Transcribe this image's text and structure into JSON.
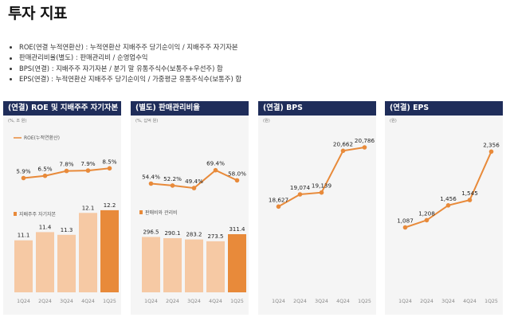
{
  "page": {
    "title": "투자 지표",
    "notes": [
      "ROE(연결 누적연환산) : 누적연환산 지배주주 당기순이익 / 지배주주 자기자본",
      "판매관리비율(별도) : 판매관리비 / 순영업수익",
      "BPS(연결) : 지배주주 자기자본 / 분기 말 유통주식수(보통주+우선주) 합",
      "EPS(연결) : 누적연환산 지배주주 당기순이익 / 가중평균 유통주식수(보통주) 합"
    ]
  },
  "colors": {
    "header_bg": "#1f2d5a",
    "line": "#e88a3a",
    "bar_light": "#f6c9a4",
    "bar_accent": "#e88a3a",
    "panel_bg": "#f5f5f5"
  },
  "chart_data": [
    {
      "type": "bar",
      "title": "(연결) ROE 및 지배주주 자기자본",
      "unit": "(%, 조 원)",
      "categories": [
        "1Q24",
        "2Q24",
        "3Q24",
        "4Q24",
        "1Q25"
      ],
      "line_series": {
        "name": "ROE(누적연환산)",
        "values": [
          5.9,
          6.5,
          7.8,
          7.9,
          8.5
        ],
        "labels": [
          "5.9%",
          "6.5%",
          "7.8%",
          "7.9%",
          "8.5%"
        ],
        "ylim": [
          0,
          12
        ]
      },
      "bar_series": {
        "name": "지배주주 자기자본",
        "values": [
          11.1,
          11.4,
          11.3,
          12.1,
          12.2
        ],
        "labels": [
          "11.1",
          "11.4",
          "11.3",
          "12.1",
          "12.2"
        ],
        "ylim": [
          9.2,
          12.4
        ]
      }
    },
    {
      "type": "bar",
      "title": "(별도) 판매관리비율",
      "unit": "(%, 십억 원)",
      "categories": [
        "1Q24",
        "2Q24",
        "3Q24",
        "4Q24",
        "1Q25"
      ],
      "line_series": {
        "name": "판매관리비율",
        "values": [
          54.4,
          52.2,
          49.4,
          69.4,
          58.0
        ],
        "labels": [
          "54.4%",
          "52.2%",
          "49.4%",
          "69.4%",
          "58.0%"
        ],
        "ylim": [
          20,
          120
        ]
      },
      "bar_series": {
        "name": "판매비와 관리비",
        "values": [
          296.5,
          290.1,
          283.2,
          273.5,
          311.4
        ],
        "labels": [
          "296.5",
          "290.1",
          "283.2",
          "273.5",
          "311.4"
        ],
        "ylim": [
          0,
          311.4
        ]
      }
    },
    {
      "type": "line",
      "title": "(연결) BPS",
      "unit": "(원)",
      "categories": [
        "1Q24",
        "2Q24",
        "3Q24",
        "4Q24",
        "1Q25"
      ],
      "line_series": {
        "name": "BPS",
        "values": [
          18627,
          19074,
          19139,
          20662,
          20786
        ],
        "labels": [
          "18,627",
          "19,074",
          "19,139",
          "20,662",
          "20,786"
        ],
        "ylim": [
          15500,
          21600
        ]
      }
    },
    {
      "type": "line",
      "title": "(연결) EPS",
      "unit": "(원)",
      "categories": [
        "1Q24",
        "2Q24",
        "3Q24",
        "4Q24",
        "1Q25"
      ],
      "line_series": {
        "name": "EPS",
        "values": [
          1087,
          1208,
          1456,
          1545,
          2356
        ],
        "labels": [
          "1,087",
          "1,208",
          "1,456",
          "1,545",
          "2,356"
        ],
        "ylim": [
          0,
          2800
        ]
      }
    }
  ]
}
